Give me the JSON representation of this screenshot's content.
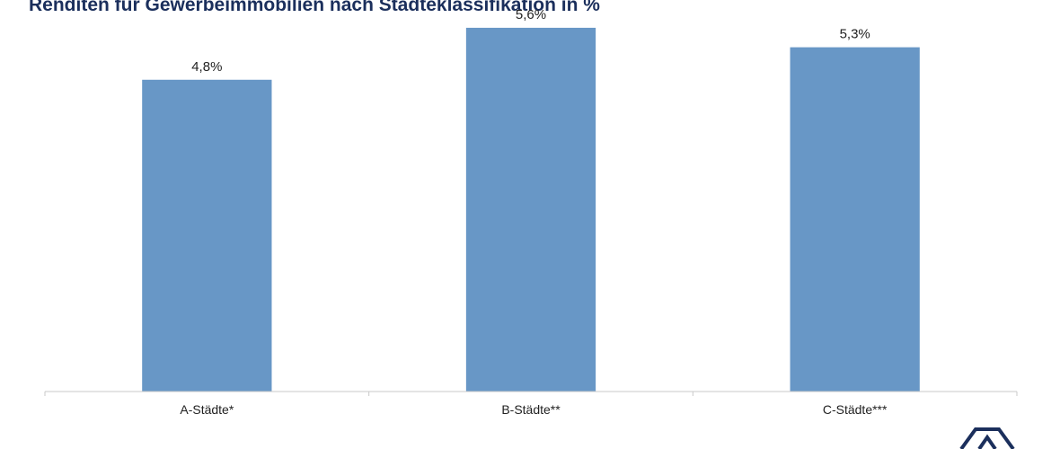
{
  "chart_data": {
    "type": "bar",
    "title": "Renditen für Gewerbeimmobilien nach Städteklassifikation in %",
    "categories": [
      "A-Städte*",
      "B-Städte**",
      "C-Städte***"
    ],
    "values": [
      4.8,
      5.6,
      5.3
    ],
    "value_labels": [
      "4,8%",
      "5,6%",
      "5,3%"
    ],
    "xlabel": "",
    "ylabel": "",
    "ylim": [
      0,
      6.0
    ],
    "grid": false,
    "legend": "none",
    "bar_color": "#6897c6"
  },
  "logo": {
    "icon": "house-roof-logo-icon",
    "color": "#1b2f5c"
  }
}
